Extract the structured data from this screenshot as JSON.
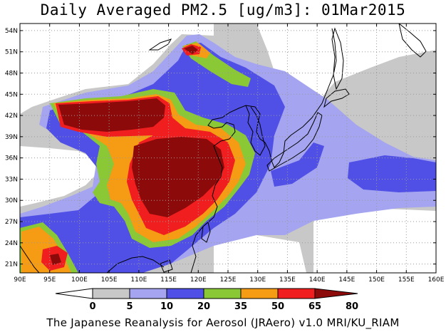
{
  "title": "Daily Averaged PM2.5 [ug/m3]: 01Mar2015",
  "caption": "The Japanese Reanalysis for Aerosol (JRAero) v1.0 MRI/KU_RIAM",
  "lat_labels": [
    "54N",
    "51N",
    "48N",
    "45N",
    "42N",
    "39N",
    "36N",
    "33N",
    "30N",
    "27N",
    "24N",
    "21N"
  ],
  "lon_labels": [
    "90E",
    "95E",
    "100E",
    "105E",
    "110E",
    "115E",
    "120E",
    "125E",
    "130E",
    "135E",
    "140E",
    "145E",
    "150E",
    "155E",
    "160E"
  ],
  "legend": {
    "ticks": [
      "0",
      "5",
      "10",
      "20",
      "35",
      "50",
      "65",
      "80"
    ],
    "colors": [
      "#ffffff",
      "#c8c8c8",
      "#a4a4f0",
      "#5050e6",
      "#8ac836",
      "#f59b14",
      "#f01e1e",
      "#8c0a0a"
    ]
  },
  "colors": {
    "background": "#ffffff",
    "grid": "#9a9a9a",
    "coastline": "#000000"
  }
}
